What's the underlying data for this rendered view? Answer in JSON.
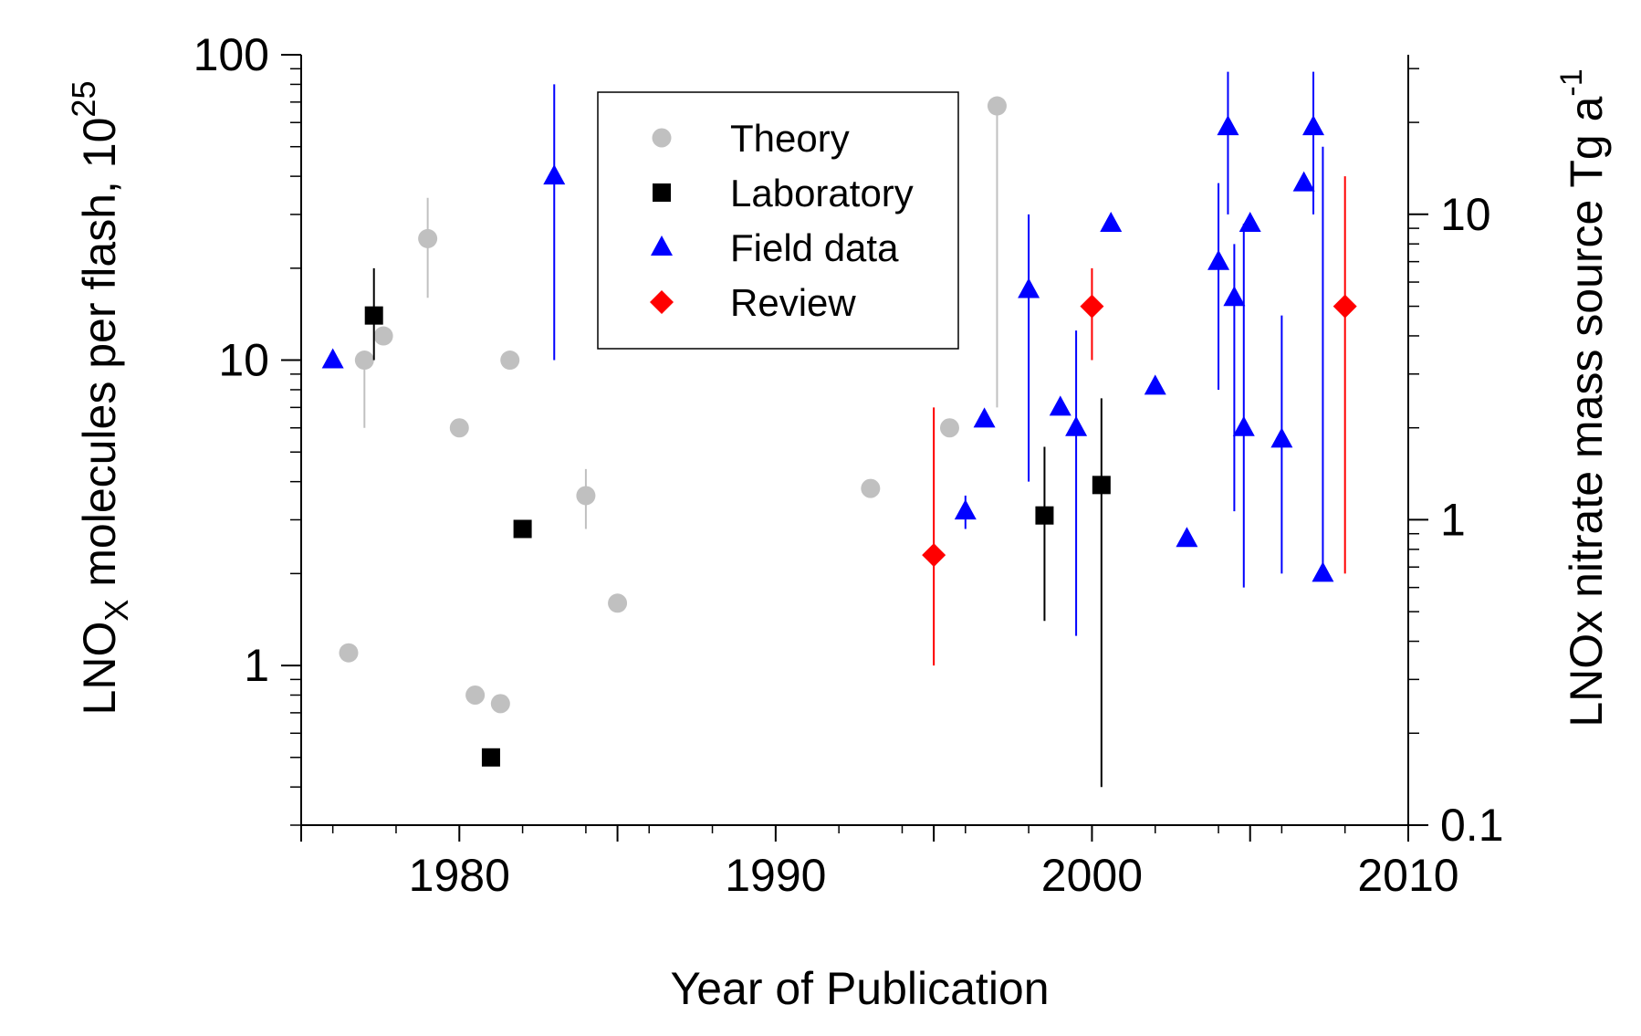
{
  "chart_data": {
    "type": "scatter",
    "xlabel": "Year of Publication",
    "ylabel": {
      "prefix": "LNO",
      "sub": "X",
      "middle": " molecules per flash, 10",
      "sup": "25"
    },
    "ylabel_right": {
      "main": "LNOx nitrate mass source Tg a",
      "sup": "-1"
    },
    "xlim": [
      1975,
      2010
    ],
    "ylim": [
      0.3,
      100
    ],
    "ylim_right": [
      0.1,
      33.3
    ],
    "y_scale": "log",
    "y_right_scale": "log",
    "x_ticks": [
      1980,
      1990,
      2000,
      2010
    ],
    "x_tick_labels": [
      "1980",
      "1990",
      "2000",
      "2010"
    ],
    "y_ticks": [
      1,
      10,
      100
    ],
    "y_tick_labels": [
      "1",
      "10",
      "100"
    ],
    "y_right_ticks": [
      0.1,
      1,
      10
    ],
    "y_right_tick_labels": [
      "0.1",
      "1",
      "10"
    ],
    "grid": false,
    "legend_position": "top-center",
    "series": [
      {
        "name": "Theory",
        "marker": "circle",
        "color": "#c0c0c0",
        "points": [
          {
            "x": 1976.5,
            "y": 1.1
          },
          {
            "x": 1977.0,
            "y": 10,
            "lo": 6,
            "hi": 10
          },
          {
            "x": 1977.6,
            "y": 12
          },
          {
            "x": 1979.0,
            "y": 25,
            "lo": 16,
            "hi": 34
          },
          {
            "x": 1980.0,
            "y": 6
          },
          {
            "x": 1980.5,
            "y": 0.8
          },
          {
            "x": 1981.3,
            "y": 0.75
          },
          {
            "x": 1981.6,
            "y": 10
          },
          {
            "x": 1984.0,
            "y": 3.6,
            "lo": 2.8,
            "hi": 4.4
          },
          {
            "x": 1985.0,
            "y": 1.6
          },
          {
            "x": 1993.0,
            "y": 3.8
          },
          {
            "x": 1995.5,
            "y": 6
          },
          {
            "x": 1997.0,
            "y": 68,
            "lo": 7,
            "hi": 68
          }
        ]
      },
      {
        "name": "Laboratory",
        "marker": "square",
        "color": "#000000",
        "points": [
          {
            "x": 1977.3,
            "y": 14,
            "lo": 10,
            "hi": 20
          },
          {
            "x": 1981.0,
            "y": 0.5
          },
          {
            "x": 1982.0,
            "y": 2.8
          },
          {
            "x": 1998.5,
            "y": 3.1,
            "lo": 1.4,
            "hi": 5.2
          },
          {
            "x": 2000.3,
            "y": 3.9,
            "lo": 0.4,
            "hi": 7.5
          }
        ]
      },
      {
        "name": "Field data",
        "marker": "triangle",
        "color": "#0000ff",
        "points": [
          {
            "x": 1976.0,
            "y": 10
          },
          {
            "x": 1983.0,
            "y": 40,
            "lo": 10,
            "hi": 80
          },
          {
            "x": 1996.0,
            "y": 3.2,
            "lo": 2.8,
            "hi": 3.6
          },
          {
            "x": 1996.6,
            "y": 6.4
          },
          {
            "x": 1998.0,
            "y": 17,
            "lo": 4,
            "hi": 30
          },
          {
            "x": 1999.0,
            "y": 7
          },
          {
            "x": 1999.5,
            "y": 6,
            "lo": 1.25,
            "hi": 12.5
          },
          {
            "x": 2000.6,
            "y": 28
          },
          {
            "x": 2002.0,
            "y": 8.2
          },
          {
            "x": 2003.0,
            "y": 2.6
          },
          {
            "x": 2004.0,
            "y": 21,
            "lo": 8,
            "hi": 38
          },
          {
            "x": 2004.3,
            "y": 58,
            "lo": 30,
            "hi": 88
          },
          {
            "x": 2004.5,
            "y": 16,
            "lo": 3.2,
            "hi": 24
          },
          {
            "x": 2004.8,
            "y": 6,
            "lo": 1.8,
            "hi": 28
          },
          {
            "x": 2005.0,
            "y": 28
          },
          {
            "x": 2006.0,
            "y": 5.5,
            "lo": 2,
            "hi": 14
          },
          {
            "x": 2006.7,
            "y": 38
          },
          {
            "x": 2007.0,
            "y": 58,
            "lo": 30,
            "hi": 88
          },
          {
            "x": 2007.3,
            "y": 2,
            "lo": 2,
            "hi": 50
          }
        ]
      },
      {
        "name": "Review",
        "marker": "diamond",
        "color": "#ff0000",
        "points": [
          {
            "x": 1995.0,
            "y": 2.3,
            "lo": 1,
            "hi": 7
          },
          {
            "x": 2000.0,
            "y": 15,
            "lo": 10,
            "hi": 20
          },
          {
            "x": 2008.0,
            "y": 15,
            "lo": 2,
            "hi": 40
          }
        ]
      }
    ]
  }
}
